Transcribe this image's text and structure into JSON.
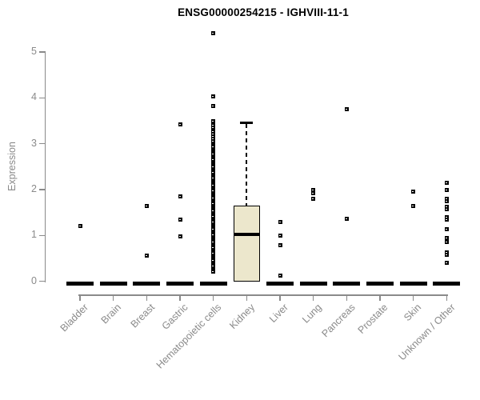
{
  "title": "ENSG00000254215 - IGHVIII-11-1",
  "colors": {
    "background": "#FFFFFF",
    "axis": "#8A8A8A",
    "box_fill": "#ECE7CC",
    "box_border": "#000000",
    "point": "#000000",
    "title": "#000000"
  },
  "chart_data": {
    "type": "boxplot",
    "title": "ENSG00000254215 - IGHVIII-11-1",
    "xlabel": "",
    "ylabel": "Expression",
    "ylim": [
      0,
      5.5
    ],
    "yticks": [
      0,
      1,
      2,
      3,
      4,
      5
    ],
    "grid": false,
    "legend": "none",
    "categories": [
      "Bladder",
      "Brain",
      "Breast",
      "Gastric",
      "Hematopoietic cells",
      "Kidney",
      "Liver",
      "Lung",
      "Pancreas",
      "Prostate",
      "Skin",
      "Unknown / Other"
    ],
    "boxes": [
      {
        "category": "Bladder",
        "median": 0,
        "q1": 0,
        "q3": 0,
        "whisker_low": 0,
        "whisker_high": 0,
        "outliers": [
          1.2
        ]
      },
      {
        "category": "Brain",
        "median": 0,
        "q1": 0,
        "q3": 0,
        "whisker_low": 0,
        "whisker_high": 0,
        "outliers": []
      },
      {
        "category": "Breast",
        "median": 0,
        "q1": 0,
        "q3": 0,
        "whisker_low": 0,
        "whisker_high": 0,
        "outliers": [
          1.65,
          0.57
        ]
      },
      {
        "category": "Gastric",
        "median": 0,
        "q1": 0,
        "q3": 0,
        "whisker_low": 0,
        "whisker_high": 0,
        "outliers": [
          3.43,
          1.85,
          1.34,
          0.98
        ]
      },
      {
        "category": "Hematopoietic cells",
        "median": 0,
        "q1": 0,
        "q3": 0,
        "whisker_low": 0,
        "whisker_high": 0,
        "outliers": [
          5.41,
          4.04,
          3.82,
          3.49,
          3.4,
          3.35,
          3.26,
          3.21,
          3.16,
          3.11,
          3.05,
          3.01,
          2.97,
          2.93,
          2.89,
          2.85,
          2.81,
          2.77,
          2.73,
          2.69,
          2.65,
          2.61,
          2.57,
          2.53,
          2.49,
          2.45,
          2.41,
          2.37,
          2.33,
          2.29,
          2.25,
          2.21,
          2.17,
          2.13,
          2.09,
          2.05,
          2.01,
          1.97,
          1.93,
          1.89,
          1.85,
          1.81,
          1.77,
          1.73,
          1.69,
          1.65,
          1.61,
          1.57,
          1.53,
          1.49,
          1.45,
          1.41,
          1.37,
          1.33,
          1.29,
          1.25,
          1.21,
          1.17,
          1.13,
          1.09,
          1.05,
          1.01,
          0.97,
          0.93,
          0.89,
          0.85,
          0.81,
          0.77,
          0.73,
          0.69,
          0.65,
          0.61,
          0.57,
          0.53,
          0.49,
          0.45,
          0.41,
          0.37,
          0.33,
          0.29,
          0.25,
          0.21
        ]
      },
      {
        "category": "Kidney",
        "median": 1.02,
        "q1": 0,
        "q3": 1.66,
        "whisker_low": 0,
        "whisker_high": 3.46,
        "outliers": []
      },
      {
        "category": "Liver",
        "median": 0,
        "q1": 0,
        "q3": 0,
        "whisker_low": 0,
        "whisker_high": 0,
        "outliers": [
          1.3,
          0.99,
          0.78,
          0.12
        ]
      },
      {
        "category": "Lung",
        "median": 0,
        "q1": 0,
        "q3": 0,
        "whisker_low": 0,
        "whisker_high": 0,
        "outliers": [
          2.0,
          1.93,
          1.8
        ]
      },
      {
        "category": "Pancreas",
        "median": 0,
        "q1": 0,
        "q3": 0,
        "whisker_low": 0,
        "whisker_high": 0,
        "outliers": [
          3.76,
          1.36
        ]
      },
      {
        "category": "Prostate",
        "median": 0,
        "q1": 0,
        "q3": 0,
        "whisker_low": 0,
        "whisker_high": 0,
        "outliers": []
      },
      {
        "category": "Skin",
        "median": 0,
        "q1": 0,
        "q3": 0,
        "whisker_low": 0,
        "whisker_high": 0,
        "outliers": [
          1.95,
          1.65
        ]
      },
      {
        "category": "Unknown / Other",
        "median": 0,
        "q1": 0,
        "q3": 0,
        "whisker_low": 0,
        "whisker_high": 0,
        "outliers": [
          2.15,
          2.0,
          1.8,
          1.75,
          1.63,
          1.58,
          1.4,
          1.35,
          1.13,
          0.95,
          0.9,
          0.85,
          0.63,
          0.58,
          0.4
        ]
      }
    ]
  }
}
